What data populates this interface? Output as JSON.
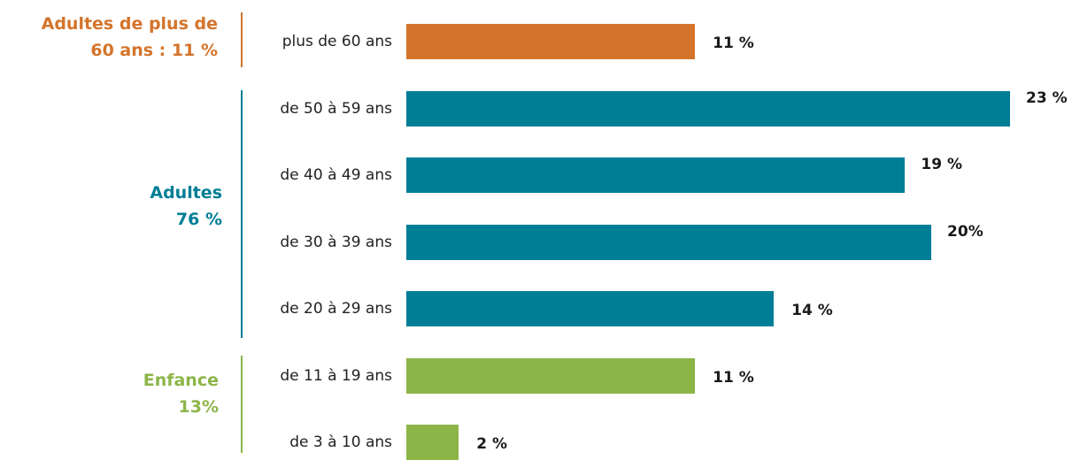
{
  "colors": {
    "senior": "#d4742b",
    "adult": "#007e96",
    "child": "#8cb548",
    "category_text": "#222222",
    "value_text": "#1a1a1a"
  },
  "groups": {
    "senior": {
      "line1": "Adultes de plus de",
      "line2": "60 ans : 11 %",
      "color": "#d4742b"
    },
    "adult": {
      "line1": "Adultes",
      "line2": "76 %",
      "color": "#007e96"
    },
    "child": {
      "line1": "Enfance",
      "line2": "13%",
      "color": "#8cb548"
    }
  },
  "chart_data": {
    "type": "bar",
    "orientation": "horizontal",
    "categories": [
      "plus de 60 ans",
      "de 50 à 59 ans",
      "de 40 à 49 ans",
      "de 30 à 39 ans",
      "de 20 à 29 ans",
      "de 11 à 19 ans",
      "de 3 à 10 ans"
    ],
    "values": [
      11,
      23,
      19,
      20,
      14,
      11,
      2
    ],
    "value_labels": [
      "11 %",
      "23 %",
      "19 %",
      "20%",
      "14 %",
      "11 %",
      "2 %"
    ],
    "bar_groups": [
      "senior",
      "adult",
      "adult",
      "adult",
      "adult",
      "child",
      "child"
    ],
    "xlim": [
      0,
      23
    ],
    "grid": false,
    "legend": "none"
  }
}
